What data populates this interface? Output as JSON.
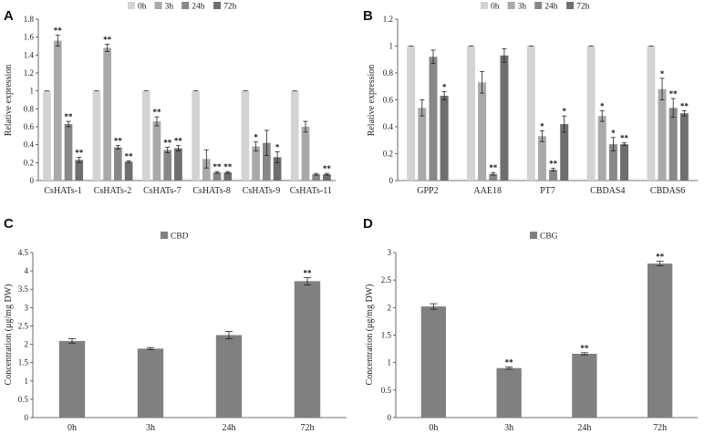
{
  "colors": {
    "0h": "#d3d3d3",
    "3h": "#a9a9a9",
    "24h": "#888888",
    "72h": "#6e6e6e",
    "cbd": "#808080",
    "cbg": "#808080",
    "axis": "#444444",
    "error": "#222222"
  },
  "chart_data": [
    {
      "panel": "A",
      "type": "bar",
      "ylabel": "Relative expression",
      "ylim": [
        0,
        1.8
      ],
      "yticks": [
        "0",
        "0.2",
        "0.4",
        "0.6",
        "0.8",
        "1",
        "1.2",
        "1.4",
        "1.6",
        "1.8"
      ],
      "legend": [
        "0h",
        "3h",
        "24h",
        "72h"
      ],
      "categories": [
        "CsHATs-1",
        "CsHATs-2",
        "CsHATs-7",
        "CsHATs-8",
        "CsHATs-9",
        "CsHATs-11"
      ],
      "series": [
        {
          "name": "0h",
          "values": [
            1,
            1,
            1,
            1,
            1,
            1
          ],
          "errors": [
            0,
            0,
            0,
            0,
            0,
            0
          ],
          "marks": [
            "",
            "",
            "",
            "",
            "",
            ""
          ]
        },
        {
          "name": "3h",
          "values": [
            1.56,
            1.48,
            0.66,
            0.24,
            0.38,
            0.6
          ],
          "errors": [
            0.06,
            0.04,
            0.05,
            0.1,
            0.05,
            0.06
          ],
          "marks": [
            "**",
            "**",
            "**",
            "",
            "*",
            ""
          ]
        },
        {
          "name": "24h",
          "values": [
            0.63,
            0.37,
            0.34,
            0.09,
            0.42,
            0.07
          ],
          "errors": [
            0.03,
            0.02,
            0.03,
            0.01,
            0.14,
            0.01
          ],
          "marks": [
            "**",
            "**",
            "**",
            "**",
            "",
            ""
          ]
        },
        {
          "name": "72h",
          "values": [
            0.23,
            0.21,
            0.36,
            0.09,
            0.26,
            0.07
          ],
          "errors": [
            0.03,
            0.01,
            0.03,
            0.01,
            0.06,
            0.01
          ],
          "marks": [
            "**",
            "**",
            "**",
            "**",
            "*",
            "**"
          ]
        }
      ]
    },
    {
      "panel": "B",
      "type": "bar",
      "ylabel": "Relative expression",
      "ylim": [
        0,
        1.2
      ],
      "yticks": [
        "0",
        "0.2",
        "0.4",
        "0.6",
        "0.8",
        "1",
        "1.2"
      ],
      "legend": [
        "0h",
        "3h",
        "24h",
        "72h"
      ],
      "categories": [
        "GPP2",
        "AAE18",
        "PT7",
        "CBDAS4",
        "CBDAS6"
      ],
      "series": [
        {
          "name": "0h",
          "values": [
            1,
            1,
            1,
            1,
            1
          ],
          "errors": [
            0,
            0,
            0,
            0,
            0
          ],
          "marks": [
            "",
            "",
            "",
            "",
            ""
          ]
        },
        {
          "name": "3h",
          "values": [
            0.54,
            0.73,
            0.33,
            0.48,
            0.68
          ],
          "errors": [
            0.06,
            0.08,
            0.04,
            0.04,
            0.08
          ],
          "marks": [
            "",
            "",
            "*",
            "*",
            "*"
          ]
        },
        {
          "name": "24h",
          "values": [
            0.92,
            0.05,
            0.08,
            0.27,
            0.54
          ],
          "errors": [
            0.05,
            0.01,
            0.01,
            0.05,
            0.07
          ],
          "marks": [
            "",
            "**",
            "**",
            "*",
            "**"
          ]
        },
        {
          "name": "72h",
          "values": [
            0.63,
            0.93,
            0.42,
            0.27,
            0.5
          ],
          "errors": [
            0.03,
            0.05,
            0.06,
            0.01,
            0.02
          ],
          "marks": [
            "*",
            "",
            "*",
            "**",
            "**"
          ]
        }
      ]
    },
    {
      "panel": "C",
      "type": "bar",
      "ylabel": "Concentration (μg/mg DW)",
      "ylim": [
        0,
        4.5
      ],
      "yticks": [
        "0",
        "0.5",
        "1",
        "1.5",
        "2",
        "2.5",
        "3",
        "3.5",
        "4",
        "4.5"
      ],
      "legend": [
        "CBD"
      ],
      "categories": [
        "0h",
        "3h",
        "24h",
        "72h"
      ],
      "series": [
        {
          "name": "CBD",
          "values": [
            2.09,
            1.88,
            2.25,
            3.72
          ],
          "errors": [
            0.06,
            0.03,
            0.1,
            0.1
          ],
          "marks": [
            "",
            "",
            "",
            "**"
          ]
        }
      ]
    },
    {
      "panel": "D",
      "type": "bar",
      "ylabel": "Concentration (μg/mg DW)",
      "ylim": [
        0,
        3
      ],
      "yticks": [
        "0",
        "0.5",
        "1",
        "1.5",
        "2",
        "2.5",
        "3"
      ],
      "legend": [
        "CBG"
      ],
      "categories": [
        "0h",
        "3h",
        "24h",
        "72h"
      ],
      "series": [
        {
          "name": "CBG",
          "values": [
            2.02,
            0.9,
            1.16,
            2.8
          ],
          "errors": [
            0.05,
            0.02,
            0.02,
            0.04
          ],
          "marks": [
            "",
            "**",
            "**",
            "**"
          ]
        }
      ]
    }
  ]
}
